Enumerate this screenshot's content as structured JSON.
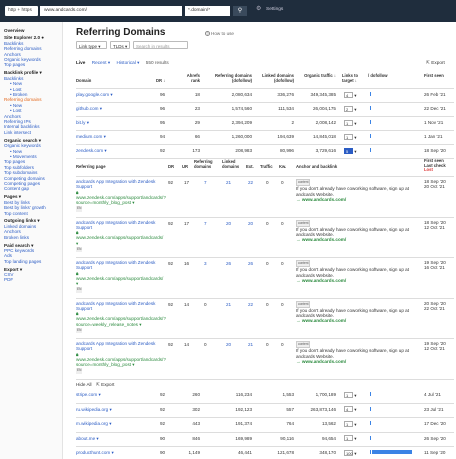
{
  "topbar": {
    "protocol": "http + https",
    "url": "www.andcards.com/",
    "mode": "*.domain/*",
    "search_icon": "search-icon",
    "settings": "Settings"
  },
  "sidebar": [
    {
      "t": "Overview",
      "k": "h"
    },
    {
      "t": "Site Explorer 2.0 ●",
      "k": "h"
    },
    {
      "t": "Backlinks",
      "k": "l"
    },
    {
      "t": "Referring domains",
      "k": "l"
    },
    {
      "t": "Anchors",
      "k": "l"
    },
    {
      "t": "Organic keywords",
      "k": "l"
    },
    {
      "t": "Top pages",
      "k": "l"
    },
    {
      "t": "Backlink profile ▾",
      "k": "h"
    },
    {
      "t": "Backlinks",
      "k": "l"
    },
    {
      "t": "• New",
      "k": "sub"
    },
    {
      "t": "• Lost",
      "k": "sub"
    },
    {
      "t": "• Broken",
      "k": "sub"
    },
    {
      "t": "Referring domains",
      "k": "act"
    },
    {
      "t": "• New",
      "k": "sub"
    },
    {
      "t": "• Lost",
      "k": "sub"
    },
    {
      "t": "Anchors",
      "k": "l"
    },
    {
      "t": "Referring IPs",
      "k": "l"
    },
    {
      "t": "Internal backlinks",
      "k": "l"
    },
    {
      "t": "Link intersect",
      "k": "l"
    },
    {
      "t": "Organic search ▾",
      "k": "h"
    },
    {
      "t": "Organic keywords",
      "k": "l"
    },
    {
      "t": "• New",
      "k": "sub"
    },
    {
      "t": "• Movements",
      "k": "sub"
    },
    {
      "t": "Top pages",
      "k": "l"
    },
    {
      "t": "Top subfolders",
      "k": "l"
    },
    {
      "t": "Top subdomains",
      "k": "l"
    },
    {
      "t": "Competing domains",
      "k": "l"
    },
    {
      "t": "Competing pages",
      "k": "l"
    },
    {
      "t": "Content gap",
      "k": "l"
    },
    {
      "t": "Pages ▾",
      "k": "h"
    },
    {
      "t": "Best by links",
      "k": "l"
    },
    {
      "t": "Best by links' growth",
      "k": "l"
    },
    {
      "t": "Top content",
      "k": "l"
    },
    {
      "t": "Outgoing links ▾",
      "k": "h"
    },
    {
      "t": "Linked domains",
      "k": "l"
    },
    {
      "t": "Anchors",
      "k": "l"
    },
    {
      "t": "Broken links",
      "k": "l"
    },
    {
      "t": "Paid search ▾",
      "k": "h"
    },
    {
      "t": "PPC keywords",
      "k": "l"
    },
    {
      "t": "Ads",
      "k": "l"
    },
    {
      "t": "Top landing pages",
      "k": "l"
    },
    {
      "t": "Export ▾",
      "k": "h"
    },
    {
      "t": "CSV",
      "k": "l"
    },
    {
      "t": "PDF",
      "k": "l"
    }
  ],
  "page": {
    "title": "Referring Domains",
    "help": "How to use",
    "link_type": "Link type ▾",
    "tlds": "TLDs ▾",
    "search_placeholder": "Search in results",
    "tab_live": "Live",
    "tab_recent": "Recent ▾",
    "tab_historical": "Historical ▾",
    "results": "550 results",
    "export": "Export"
  },
  "domain_headers": {
    "domain": "Domain",
    "dr": "DR ↓",
    "ahrefs_rank": "Ahrefs rank",
    "ref_domains": "Referring domains (dofollow)",
    "linked_domains": "Linked domains (dofollow)",
    "organic": "Organic traffic ↓",
    "links": "Links to target ↓",
    "dofollow": "/ dofollow",
    "first_seen": "First seen"
  },
  "domains_top": [
    {
      "domain": "play.google.com ▾",
      "dr": "96",
      "rank": "18",
      "ref": "2,080,634",
      "linked": "336,276",
      "traffic": "349,345,385",
      "links": "4",
      "date": "26 Feb '21"
    },
    {
      "domain": "github.com ▾",
      "dr": "96",
      "rank": "23",
      "ref": "1,574,560",
      "linked": "111,534",
      "traffic": "26,004,175",
      "links": "2",
      "date": "22 Dec '21"
    },
    {
      "domain": "bit.ly ▾",
      "dr": "95",
      "rank": "29",
      "ref": "2,394,209",
      "linked": "2",
      "traffic": "2,008,142",
      "links": "1",
      "date": "1 Nov '21"
    },
    {
      "domain": "medium.com ▾",
      "dr": "94",
      "rank": "66",
      "ref": "1,260,000",
      "linked": "194,639",
      "traffic": "14,845,018",
      "links": "1",
      "date": "1 Jan '21"
    },
    {
      "domain": "zendesk.com ▾",
      "dr": "92",
      "rank": "173",
      "ref": "208,983",
      "linked": "80,996",
      "traffic": "3,729,616",
      "links": "5",
      "date": "18 Sep '20"
    }
  ],
  "backlink_headers": {
    "page": "Referring page",
    "dr": "DR",
    "ur": "UR",
    "rd": "Referring domains",
    "ld": "Linked domains",
    "ext": "Ext.",
    "traffic": "Traffic",
    "kw": "Kw.",
    "anchor": "Anchor and backlink",
    "first": "First seen",
    "last": "Last check",
    "lost": "Lost"
  },
  "backlinks": [
    {
      "title": "andcards App Integration with Zendesk Support",
      "url": "www.zendesk.com/apps/support/andcards/?source=monthly_blog_post ▾",
      "dr": "92",
      "ur": "17",
      "rd": "7",
      "ld": "21",
      "ext": "22",
      "traffic": "0",
      "kw": "0",
      "anchor": "If you don't already have coworking software, sign up at andcards Website.",
      "target": "www.andcards.com/",
      "first": "18 Sep '20",
      "last": "20 Oct '21"
    },
    {
      "title": "andcards App Integration with Zendesk Support",
      "url": "www.zendesk.com/apps/support/andcards/ ▾",
      "dr": "92",
      "ur": "17",
      "rd": "7",
      "ld": "20",
      "ext": "20",
      "traffic": "0",
      "kw": "0",
      "anchor": "If you don't already have coworking software, sign up at andcards Website.",
      "target": "www.andcards.com/",
      "first": "18 Sep '20",
      "last": "12 Oct '21"
    },
    {
      "title": "andcards App Integration with Zendesk Support",
      "url": "www.zendesk.com/apps/support/andcards/ ▾",
      "dr": "92",
      "ur": "16",
      "rd": "3",
      "ld": "26",
      "ext": "26",
      "traffic": "0",
      "kw": "0",
      "anchor": "If you don't already have coworking software, sign up at andcards Website.",
      "target": "www.andcards.com/",
      "first": "19 Sep '20",
      "last": "16 Oct '21"
    },
    {
      "title": "andcards App Integration with Zendesk Support",
      "url": "www.zendesk.com/apps/support/andcards/?source=weekly_release_notes ▾",
      "dr": "92",
      "ur": "14",
      "rd": "0",
      "ld": "21",
      "ext": "22",
      "traffic": "0",
      "kw": "0",
      "anchor": "If you don't already have coworking software, sign up at andcards Website.",
      "target": "www.andcards.com/",
      "first": "20 Sep '20",
      "last": "22 Oct '21"
    },
    {
      "title": "andcards App Integration with Zendesk Support",
      "url": "www.zendesk.com/apps/support/andcards/?source=monthly_blog_post ▾",
      "dr": "92",
      "ur": "14",
      "rd": "0",
      "ld": "20",
      "ext": "21",
      "traffic": "0",
      "kw": "0",
      "anchor": "If you don't already have coworking software, sign up at andcards Website.",
      "target": "www.andcards.com/",
      "first": "19 Sep '20",
      "last": "12 Oct '21"
    }
  ],
  "content_tag": "content",
  "lang_tag": "EN",
  "hide_all": "Hide All",
  "export_small": "Export",
  "domains_bottom": [
    {
      "domain": "stripe.com ▾",
      "dr": "92",
      "rank": "260",
      "ref": "116,234",
      "linked": "1,553",
      "traffic": "1,700,189",
      "links": "1",
      "date": "4 Jul '21"
    },
    {
      "domain": "ru.wikipedia.org ▾",
      "dr": "92",
      "rank": "302",
      "ref": "192,123",
      "linked": "557",
      "traffic": "263,873,146",
      "links": "4",
      "date": "23 Jul '21"
    },
    {
      "domain": "m.wikipedia.org ▾",
      "dr": "92",
      "rank": "443",
      "ref": "191,374",
      "linked": "764",
      "traffic": "13,562",
      "links": "1",
      "date": "17 Dec '20"
    },
    {
      "domain": "about.me ▾",
      "dr": "90",
      "rank": "846",
      "ref": "169,989",
      "linked": "90,116",
      "traffic": "94,654",
      "links": "1",
      "date": "26 Sep '20"
    },
    {
      "domain": "producthunt.com ▾",
      "dr": "90",
      "rank": "1,149",
      "ref": "46,441",
      "linked": "121,678",
      "traffic": "348,170",
      "links": "100",
      "date": "11 Sep '20"
    }
  ],
  "colors": {
    "accent": "#2b5cc4",
    "active": "#e4671b",
    "topbar": "#1f2d3d",
    "bar": "#3b83e5"
  }
}
